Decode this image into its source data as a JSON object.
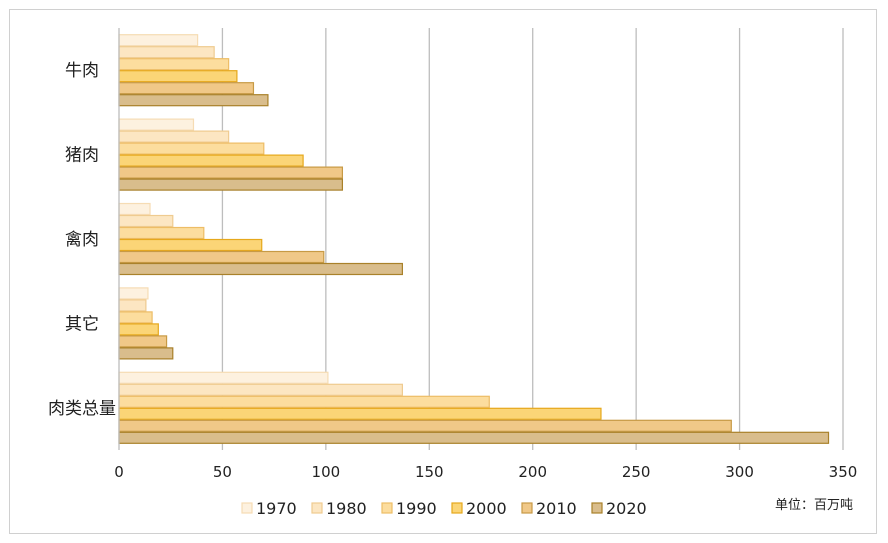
{
  "chart_data": {
    "type": "bar",
    "orientation": "horizontal",
    "categories": [
      "牛肉",
      "猪肉",
      "禽肉",
      "其它",
      "肉类总量"
    ],
    "series": [
      {
        "name": "1970",
        "values": [
          38,
          36,
          15,
          14,
          101
        ],
        "fill": "#fdf1df",
        "stroke": "#f6dcb4"
      },
      {
        "name": "1980",
        "values": [
          46,
          53,
          26,
          13,
          137
        ],
        "fill": "#fce6c2",
        "stroke": "#efcb90"
      },
      {
        "name": "1990",
        "values": [
          53,
          70,
          41,
          16,
          179
        ],
        "fill": "#fcdd9e",
        "stroke": "#edbd66"
      },
      {
        "name": "2000",
        "values": [
          57,
          89,
          69,
          19,
          233
        ],
        "fill": "#fbd577",
        "stroke": "#e6a81c"
      },
      {
        "name": "2010",
        "values": [
          65,
          108,
          99,
          23,
          296
        ],
        "fill": "#f0c888",
        "stroke": "#c79a45"
      },
      {
        "name": "2020",
        "values": [
          72,
          108,
          137,
          26,
          343
        ],
        "fill": "#d9bd8c",
        "stroke": "#a9812a"
      }
    ],
    "x_ticks": [
      0,
      50,
      100,
      150,
      200,
      250,
      300,
      350
    ],
    "xlim": [
      0,
      350
    ],
    "grid": "vertical",
    "legend": "bottom",
    "unit_label": "单位：百万吨"
  }
}
